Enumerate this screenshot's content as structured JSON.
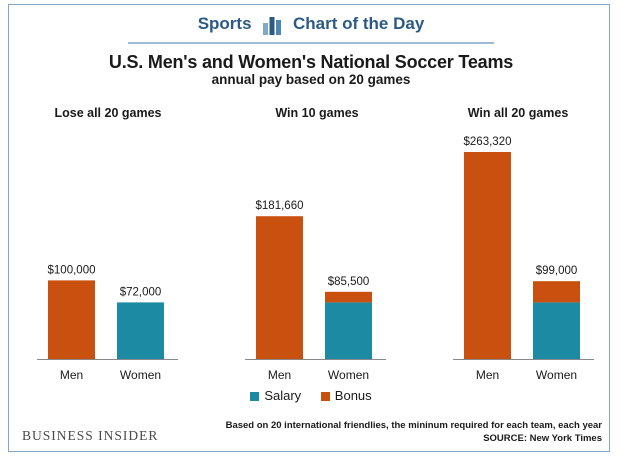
{
  "header": {
    "section": "Sports",
    "series": "Chart of the Day",
    "logo_icon": "bar-chart-logo-icon"
  },
  "chart_data": {
    "type": "bar",
    "stacked": true,
    "title": "U.S. Men's and Women's National Soccer Teams",
    "subtitle": "annual pay based on 20 games",
    "groups": [
      {
        "title": "Lose all  20 games",
        "bars": [
          {
            "category": "Men",
            "salary": 0,
            "bonus": 100000,
            "label": "$100,000"
          },
          {
            "category": "Women",
            "salary": 72000,
            "bonus": 0,
            "label": "$72,000"
          }
        ]
      },
      {
        "title": "Win  10 games",
        "bars": [
          {
            "category": "Men",
            "salary": 0,
            "bonus": 181660,
            "label": "$181,660"
          },
          {
            "category": "Women",
            "salary": 72000,
            "bonus": 13500,
            "label": "$85,500"
          }
        ]
      },
      {
        "title": "Win  all  20 games",
        "bars": [
          {
            "category": "Men",
            "salary": 0,
            "bonus": 263320,
            "label": "$263,320"
          },
          {
            "category": "Women",
            "salary": 72000,
            "bonus": 27000,
            "label": "$99,000"
          }
        ]
      }
    ],
    "series": [
      {
        "name": "Salary",
        "color": "#1c8aa3"
      },
      {
        "name": "Bonus",
        "color": "#c9500f"
      }
    ],
    "ylim": [
      0,
      263320
    ],
    "xlabel": "",
    "ylabel": ""
  },
  "footer": {
    "brand": "BUSINESS INSIDER",
    "note": "Based on 20 international friendlies, the mininum required for each team, each year",
    "source": "SOURCE: New York Times"
  }
}
